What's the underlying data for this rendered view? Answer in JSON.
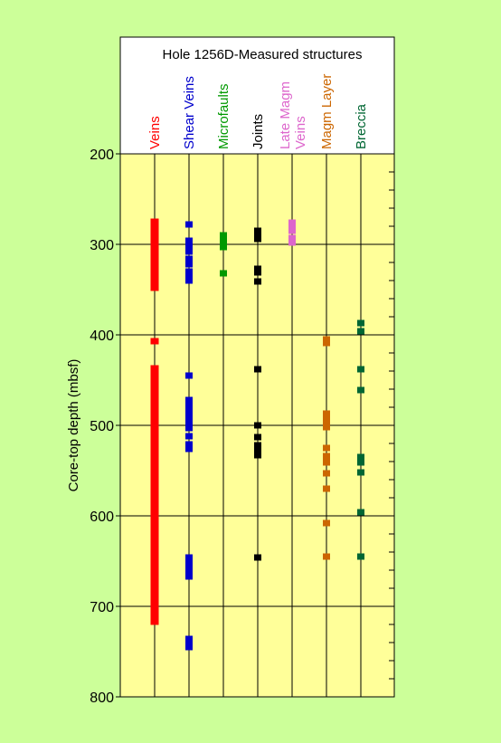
{
  "chart_data": {
    "type": "scatter",
    "title": "Hole 1256D-Measured structures",
    "ylabel": "Core-top depth (mbsf)",
    "ylim": [
      200,
      800
    ],
    "y_ticks": [
      200,
      300,
      400,
      500,
      600,
      700,
      800
    ],
    "y_inverted": true,
    "grid": true,
    "colors": {
      "page_background": "#ccff99",
      "plot_background": "#ffff99",
      "header_background": "#ffffff"
    },
    "columns": [
      {
        "name": "Veins",
        "color": "#ff0000",
        "depths": [
          275,
          280,
          285,
          290,
          295,
          300,
          305,
          310,
          315,
          320,
          325,
          330,
          335,
          340,
          345,
          348,
          407,
          437,
          442,
          447,
          452,
          457,
          462,
          467,
          472,
          477,
          482,
          487,
          492,
          497,
          502,
          507,
          512,
          517,
          522,
          527,
          532,
          537,
          542,
          547,
          552,
          557,
          562,
          567,
          572,
          577,
          582,
          587,
          592,
          597,
          602,
          607,
          612,
          617,
          622,
          627,
          632,
          637,
          642,
          647,
          652,
          657,
          662,
          667,
          672,
          677,
          682,
          687,
          692,
          697,
          702,
          707,
          712,
          717
        ]
      },
      {
        "name": "Shear Veins",
        "color": "#0000cc",
        "depths": [
          278,
          296,
          302,
          308,
          316,
          322,
          330,
          335,
          340,
          445,
          472,
          477,
          482,
          487,
          492,
          498,
          503,
          512,
          521,
          526,
          646,
          650,
          655,
          661,
          667,
          736,
          740,
          745
        ]
      },
      {
        "name": "Microfaults",
        "color": "#009900",
        "depths": [
          290,
          295,
          301,
          303,
          332
        ]
      },
      {
        "name": "Joints",
        "color": "#000000",
        "depths": [
          285,
          289,
          294,
          327,
          331,
          341,
          438,
          500,
          513,
          522,
          527,
          533,
          646
        ]
      },
      {
        "name": "Late Magm Veins",
        "color": "#dd66cc",
        "depths": [
          276,
          280,
          285,
          293,
          298
        ]
      },
      {
        "name": "Magm Layer",
        "color": "#cc6600",
        "depths": [
          405,
          409,
          487,
          492,
          497,
          502,
          525,
          534,
          541,
          553,
          570,
          608,
          645
        ]
      },
      {
        "name": "Breccia",
        "color": "#006633",
        "depths": [
          387,
          396,
          438,
          461,
          535,
          541,
          552,
          596,
          645
        ]
      }
    ]
  }
}
